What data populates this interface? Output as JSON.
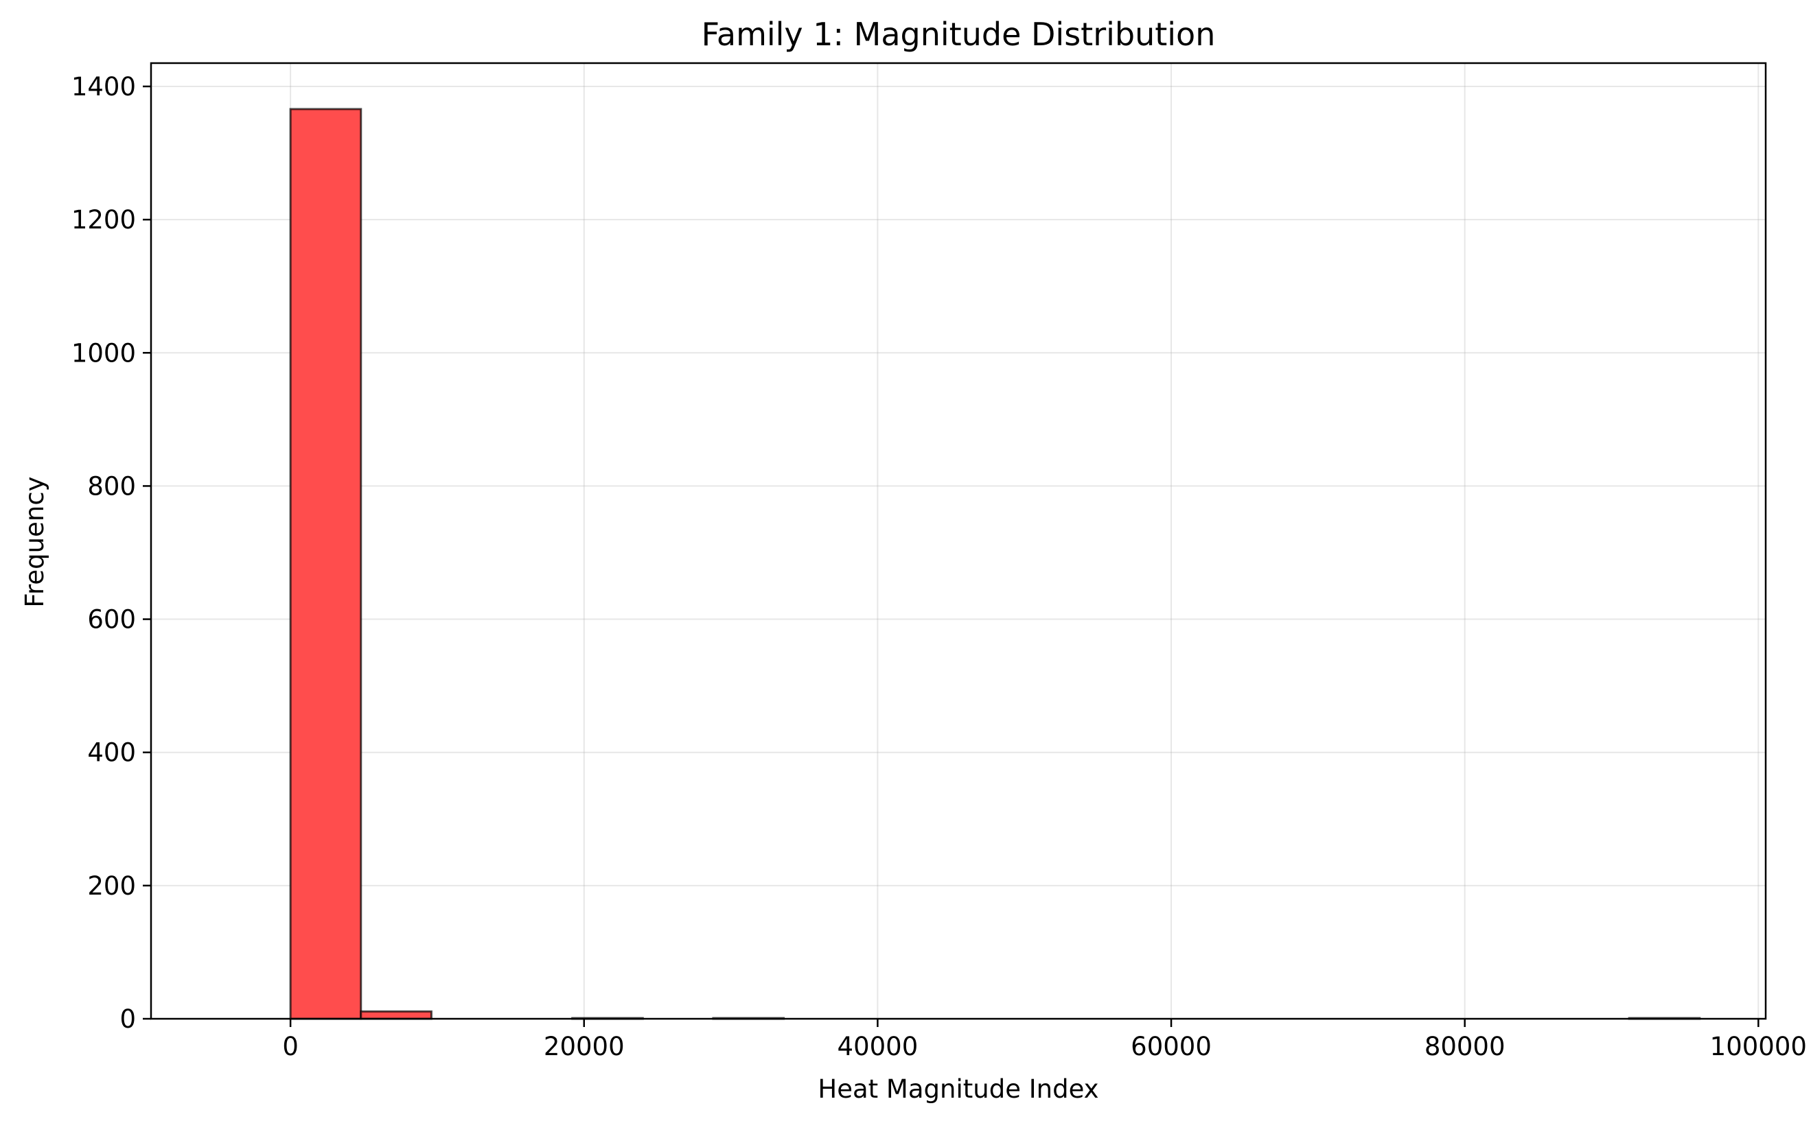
{
  "chart_data": {
    "type": "bar",
    "title": "Family 1: Magnitude Distribution",
    "xlabel": "Heat Magnitude Index",
    "ylabel": "Frequency",
    "xlim": [
      -9500,
      100500
    ],
    "ylim": [
      0,
      1435
    ],
    "x_ticks": [
      0,
      20000,
      40000,
      60000,
      80000,
      100000
    ],
    "y_ticks": [
      0,
      200,
      400,
      600,
      800,
      1000,
      1200,
      1400
    ],
    "grid": true,
    "bar_color": "#ff4d4d",
    "edge_color": "#333333",
    "bins": [
      {
        "x0": 0,
        "x1": 4800,
        "count": 1366
      },
      {
        "x0": 4800,
        "x1": 9600,
        "count": 11
      },
      {
        "x0": 9600,
        "x1": 14400,
        "count": 0
      },
      {
        "x0": 14400,
        "x1": 19200,
        "count": 0
      },
      {
        "x0": 19200,
        "x1": 24000,
        "count": 1
      },
      {
        "x0": 24000,
        "x1": 28800,
        "count": 0
      },
      {
        "x0": 28800,
        "x1": 33600,
        "count": 1
      },
      {
        "x0": 33600,
        "x1": 38400,
        "count": 0
      },
      {
        "x0": 38400,
        "x1": 43200,
        "count": 0
      },
      {
        "x0": 43200,
        "x1": 48000,
        "count": 0
      },
      {
        "x0": 48000,
        "x1": 52800,
        "count": 0
      },
      {
        "x0": 52800,
        "x1": 57600,
        "count": 0
      },
      {
        "x0": 57600,
        "x1": 62400,
        "count": 0
      },
      {
        "x0": 62400,
        "x1": 67200,
        "count": 0
      },
      {
        "x0": 67200,
        "x1": 72000,
        "count": 0
      },
      {
        "x0": 72000,
        "x1": 76800,
        "count": 0
      },
      {
        "x0": 76800,
        "x1": 81600,
        "count": 0
      },
      {
        "x0": 81600,
        "x1": 86400,
        "count": 0
      },
      {
        "x0": 86400,
        "x1": 91200,
        "count": 0
      },
      {
        "x0": 91200,
        "x1": 96000,
        "count": 1
      }
    ]
  }
}
